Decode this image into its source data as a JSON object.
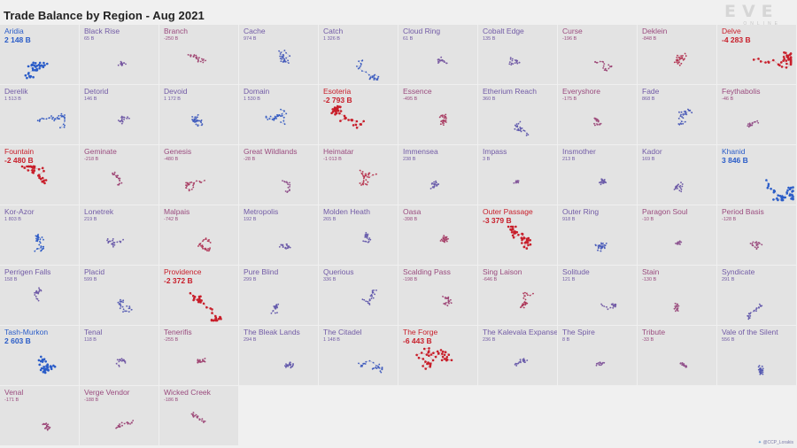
{
  "title": "Trade Balance by Region - Aug 2021",
  "logo": {
    "main": "EVE",
    "sub": "ONLINE",
    "color": "#d6d6d6"
  },
  "credit": {
    "icon": "bird-icon",
    "text": "@CCP_Lorakis"
  },
  "colors": {
    "positive": "#2a5cc8",
    "negative": "#c81e2a",
    "neutral": "#8a5a9a",
    "tile": "#e3e3e3",
    "background": "#f0f0f0"
  },
  "chart_data": {
    "type": "scatter",
    "title": "Trade Balance by Region - Aug 2021",
    "unit": "B",
    "columns": 10,
    "regions": [
      {
        "name": "Aridia",
        "value_label": "2 148 B",
        "value": 2148
      },
      {
        "name": "Black Rise",
        "value_label": "65 B",
        "value": 65
      },
      {
        "name": "Branch",
        "value_label": "-250 B",
        "value": -250
      },
      {
        "name": "Cache",
        "value_label": "974 B",
        "value": 974
      },
      {
        "name": "Catch",
        "value_label": "1 326 B",
        "value": 1326
      },
      {
        "name": "Cloud Ring",
        "value_label": "61 B",
        "value": 61
      },
      {
        "name": "Cobalt Edge",
        "value_label": "135 B",
        "value": 135
      },
      {
        "name": "Curse",
        "value_label": "-196 B",
        "value": -196
      },
      {
        "name": "Deklein",
        "value_label": "-848 B",
        "value": -848
      },
      {
        "name": "Delve",
        "value_label": "-4 283 B",
        "value": -4283
      },
      {
        "name": "Derelik",
        "value_label": "1 513 B",
        "value": 1513
      },
      {
        "name": "Detorid",
        "value_label": "146 B",
        "value": 146
      },
      {
        "name": "Devoid",
        "value_label": "1 172 B",
        "value": 1172
      },
      {
        "name": "Domain",
        "value_label": "1 530 B",
        "value": 1530
      },
      {
        "name": "Esoteria",
        "value_label": "-2 793 B",
        "value": -2793
      },
      {
        "name": "Essence",
        "value_label": "-495 B",
        "value": -495
      },
      {
        "name": "Etherium Reach",
        "value_label": "360 B",
        "value": 360
      },
      {
        "name": "Everyshore",
        "value_label": "-175 B",
        "value": -175
      },
      {
        "name": "Fade",
        "value_label": "868 B",
        "value": 868
      },
      {
        "name": "Feythabolis",
        "value_label": "-46 B",
        "value": -46
      },
      {
        "name": "Fountain",
        "value_label": "-2 480 B",
        "value": -2480
      },
      {
        "name": "Geminate",
        "value_label": "-218 B",
        "value": -218
      },
      {
        "name": "Genesis",
        "value_label": "-480 B",
        "value": -480
      },
      {
        "name": "Great Wildlands",
        "value_label": "-28 B",
        "value": -28
      },
      {
        "name": "Heimatar",
        "value_label": "-1 013 B",
        "value": -1013
      },
      {
        "name": "Immensea",
        "value_label": "238 B",
        "value": 238
      },
      {
        "name": "Impass",
        "value_label": "3 B",
        "value": 3
      },
      {
        "name": "Insmother",
        "value_label": "213 B",
        "value": 213
      },
      {
        "name": "Kador",
        "value_label": "169 B",
        "value": 169
      },
      {
        "name": "Khanid",
        "value_label": "3 846 B",
        "value": 3846
      },
      {
        "name": "Kor-Azor",
        "value_label": "1 803 B",
        "value": 1803
      },
      {
        "name": "Lonetrek",
        "value_label": "219 B",
        "value": 219
      },
      {
        "name": "Malpais",
        "value_label": "-742 B",
        "value": -742
      },
      {
        "name": "Metropolis",
        "value_label": "192 B",
        "value": 192
      },
      {
        "name": "Molden Heath",
        "value_label": "265 B",
        "value": 265
      },
      {
        "name": "Oasa",
        "value_label": "-398 B",
        "value": -398
      },
      {
        "name": "Outer Passage",
        "value_label": "-3 379 B",
        "value": -3379
      },
      {
        "name": "Outer Ring",
        "value_label": "918 B",
        "value": 918
      },
      {
        "name": "Paragon Soul",
        "value_label": "-10 B",
        "value": -10
      },
      {
        "name": "Period Basis",
        "value_label": "-128 B",
        "value": -128
      },
      {
        "name": "Perrigen Falls",
        "value_label": "158 B",
        "value": 158
      },
      {
        "name": "Placid",
        "value_label": "599 B",
        "value": 599
      },
      {
        "name": "Providence",
        "value_label": "-2 372 B",
        "value": -2372
      },
      {
        "name": "Pure Blind",
        "value_label": "299 B",
        "value": 299
      },
      {
        "name": "Querious",
        "value_label": "336 B",
        "value": 336
      },
      {
        "name": "Scalding Pass",
        "value_label": "-198 B",
        "value": -198
      },
      {
        "name": "Sing Laison",
        "value_label": "-646 B",
        "value": -646
      },
      {
        "name": "Solitude",
        "value_label": "121 B",
        "value": 121
      },
      {
        "name": "Stain",
        "value_label": "-130 B",
        "value": -130
      },
      {
        "name": "Syndicate",
        "value_label": "291 B",
        "value": 291
      },
      {
        "name": "Tash-Murkon",
        "value_label": "2 603 B",
        "value": 2603
      },
      {
        "name": "Tenal",
        "value_label": "118 B",
        "value": 118
      },
      {
        "name": "Tenerifis",
        "value_label": "-255 B",
        "value": -255
      },
      {
        "name": "The Bleak Lands",
        "value_label": "294 B",
        "value": 294
      },
      {
        "name": "The Citadel",
        "value_label": "1 148 B",
        "value": 1148
      },
      {
        "name": "The Forge",
        "value_label": "-6 443 B",
        "value": -6443
      },
      {
        "name": "The Kalevala Expanse",
        "value_label": "236 B",
        "value": 236
      },
      {
        "name": "The Spire",
        "value_label": "8 B",
        "value": 8
      },
      {
        "name": "Tribute",
        "value_label": "-33 B",
        "value": -33
      },
      {
        "name": "Vale of the Silent",
        "value_label": "556 B",
        "value": 556
      },
      {
        "name": "Venal",
        "value_label": "-171 B",
        "value": -171
      },
      {
        "name": "Verge Vendor",
        "value_label": "-188 B",
        "value": -188
      },
      {
        "name": "Wicked Creek",
        "value_label": "-186 B",
        "value": -186
      }
    ]
  }
}
